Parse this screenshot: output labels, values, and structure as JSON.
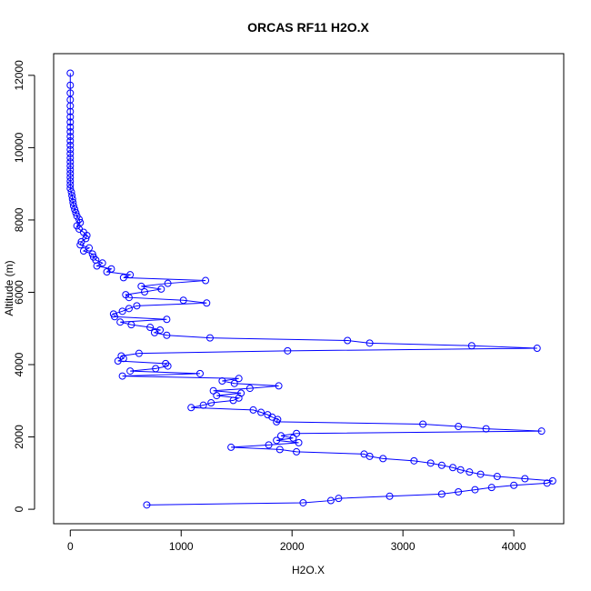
{
  "chart_data": {
    "type": "scatter",
    "title": "ORCAS RF11 H2O.X",
    "xlabel": "H2O.X",
    "ylabel": "Altitude (m)",
    "xlim": [
      -150,
      4450
    ],
    "ylim": [
      -400,
      12600
    ],
    "xticks": [
      0,
      1000,
      2000,
      3000,
      4000
    ],
    "yticks": [
      0,
      2000,
      4000,
      6000,
      8000,
      10000,
      12000
    ],
    "grid": false,
    "legend": "none",
    "point_style": "open-circle",
    "connect_points": true,
    "color": "#0000ff",
    "series": [
      {
        "x": [
          0,
          0,
          0,
          0,
          0,
          0,
          0,
          0,
          0,
          0,
          0,
          0,
          0,
          0,
          0,
          0,
          0,
          0,
          0,
          0,
          0,
          0,
          0,
          0,
          10,
          15,
          20,
          25,
          30,
          40,
          50,
          60,
          80,
          90,
          60,
          80,
          120,
          150,
          140,
          100,
          90,
          170,
          120,
          200,
          210,
          230,
          290,
          240,
          370,
          330,
          540,
          480,
          1220,
          880,
          640,
          820,
          670,
          500,
          530,
          1020,
          1230,
          600,
          530,
          470,
          390,
          400,
          870,
          450,
          550,
          720,
          810,
          760,
          870,
          1260,
          2500,
          2700,
          3620,
          4210,
          1960,
          620,
          460,
          480,
          430,
          860,
          880,
          770,
          540,
          1170,
          470,
          1520,
          1370,
          1480,
          1880,
          1620,
          1290,
          1540,
          1320,
          1520,
          1470,
          1270,
          1200,
          1090,
          1650,
          1720,
          1780,
          1820,
          1870,
          1860,
          3180,
          3500,
          3750,
          4250,
          2040,
          1900,
          2010,
          1860,
          2060,
          1790,
          1450,
          1890,
          2040,
          2650,
          2700,
          2820,
          3100,
          3250,
          3350,
          3450,
          3520,
          3600,
          3700,
          3850,
          4100,
          4350,
          4300,
          4000,
          3800,
          3650,
          3500,
          3350,
          2880,
          2420,
          2350,
          2100,
          690
        ]
      }
    ]
  }
}
